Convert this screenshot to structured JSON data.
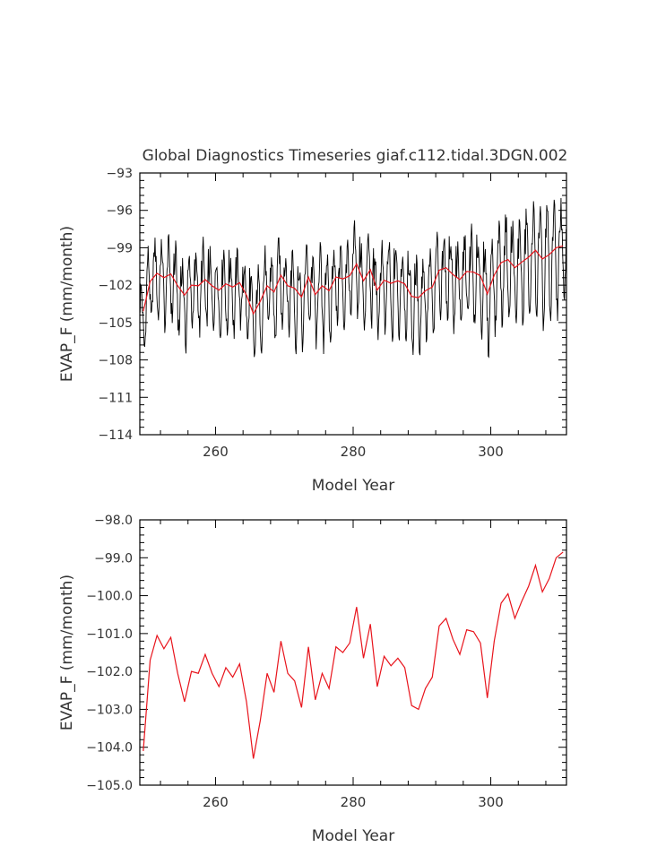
{
  "title": "Global Diagnostics Timeseries giaf.c112.tidal.3DGN.002",
  "colors": {
    "monthly": "#000000",
    "annual": "#e8141c",
    "axis": "#000000",
    "text": "#333333"
  },
  "chart_data": [
    {
      "type": "line",
      "title": "Global Diagnostics Timeseries giaf.c112.tidal.3DGN.002",
      "xlabel": "Model Year",
      "ylabel": "EVAP_F (mm/month)",
      "xlim": [
        249,
        311
      ],
      "ylim": [
        -114,
        -93
      ],
      "x_ticks": [
        260,
        280,
        300
      ],
      "x_tick_labels": [
        "260",
        "280",
        "300"
      ],
      "y_ticks": [
        -114,
        -111,
        -108,
        -105,
        -102,
        -99,
        -96,
        -93
      ],
      "y_tick_labels": [
        "−114",
        "−111",
        "−108",
        "−105",
        "−102",
        "−99",
        "−96",
        "−93"
      ],
      "grid": false,
      "series": [
        {
          "name": "",
          "kind": "monthly",
          "color": "#000000",
          "note_x": "monthly values from year 249 to 311 (744 points)",
          "annual_cycle": [
            0.6,
            1.6,
            1.9,
            1.4,
            0.4,
            -0.8,
            -1.9,
            -2.7,
            -2.9,
            -2.1,
            -0.6,
            1.2
          ],
          "amplitude_by_year": [
            1.0,
            1.1,
            1.2,
            1.3,
            1.2,
            1.4,
            1.3,
            1.1,
            1.2,
            1.3,
            1.1,
            1.2,
            1.4,
            1.2,
            1.1,
            1.3,
            1.2,
            1.1,
            1.2,
            1.4,
            1.3,
            1.2,
            1.5,
            1.3,
            1.2,
            1.3,
            1.6,
            1.4,
            1.2,
            1.3,
            1.2,
            1.3,
            1.2,
            1.3,
            1.2,
            1.5,
            1.6,
            1.4,
            1.3,
            1.4,
            1.3,
            1.2,
            1.4,
            1.3,
            1.4,
            1.5,
            1.4,
            1.3,
            1.6,
            1.4,
            1.5,
            1.5,
            1.6,
            1.7,
            1.6,
            1.7,
            1.8,
            1.7,
            1.8,
            1.9,
            1.7,
            1.6
          ]
        },
        {
          "name": "",
          "kind": "annual",
          "color": "#e8141c",
          "x": [
            249.5,
            250.5,
            251.5,
            252.5,
            253.5,
            254.5,
            255.5,
            256.5,
            257.5,
            258.5,
            259.5,
            260.5,
            261.5,
            262.5,
            263.5,
            264.5,
            265.5,
            266.5,
            267.5,
            268.5,
            269.5,
            270.5,
            271.5,
            272.5,
            273.5,
            274.5,
            275.5,
            276.5,
            277.5,
            278.5,
            279.5,
            280.5,
            281.5,
            282.5,
            283.5,
            284.5,
            285.5,
            286.5,
            287.5,
            288.5,
            289.5,
            290.5,
            291.5,
            292.5,
            293.5,
            294.5,
            295.5,
            296.5,
            297.5,
            298.5,
            299.5,
            300.5,
            301.5,
            302.5,
            303.5,
            304.5,
            305.5,
            306.5,
            307.5,
            308.5,
            309.5,
            310.5
          ],
          "y": [
            -104.1,
            -101.7,
            -101.05,
            -101.4,
            -101.1,
            -102.05,
            -102.8,
            -102.0,
            -102.05,
            -101.55,
            -102.05,
            -102.4,
            -101.9,
            -102.15,
            -101.8,
            -102.8,
            -104.3,
            -103.3,
            -102.05,
            -102.55,
            -101.2,
            -102.05,
            -102.25,
            -102.95,
            -101.35,
            -102.75,
            -102.05,
            -102.45,
            -101.35,
            -101.5,
            -101.25,
            -100.3,
            -101.65,
            -100.75,
            -102.4,
            -101.6,
            -101.85,
            -101.65,
            -101.9,
            -102.9,
            -103.0,
            -102.45,
            -102.15,
            -100.8,
            -100.6,
            -101.15,
            -101.55,
            -100.9,
            -100.95,
            -101.25,
            -102.7,
            -101.2,
            -100.2,
            -99.95,
            -100.6,
            -100.15,
            -99.75,
            -99.2,
            -99.9,
            -99.55,
            -99.0,
            -98.85
          ]
        }
      ]
    },
    {
      "type": "line",
      "title": "",
      "xlabel": "Model Year",
      "ylabel": "EVAP_F (mm/month)",
      "xlim": [
        249,
        311
      ],
      "ylim": [
        -105,
        -98
      ],
      "x_ticks": [
        260,
        280,
        300
      ],
      "x_tick_labels": [
        "260",
        "280",
        "300"
      ],
      "y_ticks": [
        -105,
        -104,
        -103,
        -102,
        -101,
        -100,
        -99,
        -98
      ],
      "y_tick_labels": [
        "−105.0",
        "−104.0",
        "−103.0",
        "−102.0",
        "−101.0",
        "−100.0",
        "−99.0",
        "−98.0"
      ],
      "grid": false,
      "series": [
        {
          "name": "",
          "kind": "annual",
          "color": "#e8141c",
          "x": [
            249.5,
            250.5,
            251.5,
            252.5,
            253.5,
            254.5,
            255.5,
            256.5,
            257.5,
            258.5,
            259.5,
            260.5,
            261.5,
            262.5,
            263.5,
            264.5,
            265.5,
            266.5,
            267.5,
            268.5,
            269.5,
            270.5,
            271.5,
            272.5,
            273.5,
            274.5,
            275.5,
            276.5,
            277.5,
            278.5,
            279.5,
            280.5,
            281.5,
            282.5,
            283.5,
            284.5,
            285.5,
            286.5,
            287.5,
            288.5,
            289.5,
            290.5,
            291.5,
            292.5,
            293.5,
            294.5,
            295.5,
            296.5,
            297.5,
            298.5,
            299.5,
            300.5,
            301.5,
            302.5,
            303.5,
            304.5,
            305.5,
            306.5,
            307.5,
            308.5,
            309.5,
            310.5
          ],
          "y": [
            -104.1,
            -101.7,
            -101.05,
            -101.4,
            -101.1,
            -102.05,
            -102.8,
            -102.0,
            -102.05,
            -101.55,
            -102.05,
            -102.4,
            -101.9,
            -102.15,
            -101.8,
            -102.8,
            -104.3,
            -103.3,
            -102.05,
            -102.55,
            -101.2,
            -102.05,
            -102.25,
            -102.95,
            -101.35,
            -102.75,
            -102.05,
            -102.45,
            -101.35,
            -101.5,
            -101.25,
            -100.3,
            -101.65,
            -100.75,
            -102.4,
            -101.6,
            -101.85,
            -101.65,
            -101.9,
            -102.9,
            -103.0,
            -102.45,
            -102.15,
            -100.8,
            -100.6,
            -101.15,
            -101.55,
            -100.9,
            -100.95,
            -101.25,
            -102.7,
            -101.2,
            -100.2,
            -99.95,
            -100.6,
            -100.15,
            -99.75,
            -99.2,
            -99.9,
            -99.55,
            -99.0,
            -98.85
          ]
        }
      ]
    }
  ]
}
